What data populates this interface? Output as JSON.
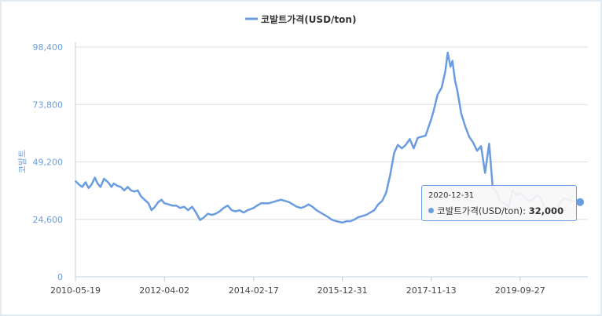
{
  "chart_data": {
    "type": "line",
    "legend": "코발트가격(USD/ton)",
    "legend_position": "top-center",
    "ylabel": "코발트",
    "y_ticks": [
      "0",
      "24,600",
      "49,200",
      "73,800",
      "98,400"
    ],
    "ylim": [
      0,
      98400
    ],
    "x_ticks": [
      "2010-05-19",
      "2012-04-02",
      "2014-02-17",
      "2015-12-31",
      "2017-11-13",
      "2019-09-27"
    ],
    "grid": "horizontal",
    "color": "#6a9ce0",
    "series": [
      {
        "name": "코발트가격(USD/ton)",
        "points": [
          [
            "2010-05-19",
            41000
          ],
          [
            "2010-06-15",
            39500
          ],
          [
            "2010-07-10",
            38500
          ],
          [
            "2010-08-05",
            40500
          ],
          [
            "2010-08-28",
            38000
          ],
          [
            "2010-09-20",
            39500
          ],
          [
            "2010-10-15",
            42500
          ],
          [
            "2010-11-05",
            40000
          ],
          [
            "2010-11-28",
            38500
          ],
          [
            "2010-12-25",
            42000
          ],
          [
            "2011-01-25",
            40500
          ],
          [
            "2011-02-20",
            38500
          ],
          [
            "2011-03-10",
            40000
          ],
          [
            "2011-04-05",
            39000
          ],
          [
            "2011-05-02",
            38500
          ],
          [
            "2011-05-30",
            37000
          ],
          [
            "2011-06-25",
            38500
          ],
          [
            "2011-07-20",
            37000
          ],
          [
            "2011-08-15",
            36500
          ],
          [
            "2011-09-10",
            37000
          ],
          [
            "2011-10-05",
            34500
          ],
          [
            "2011-11-01",
            33000
          ],
          [
            "2011-12-01",
            31500
          ],
          [
            "2011-12-25",
            28500
          ],
          [
            "2012-01-20",
            30000
          ],
          [
            "2012-02-15",
            32000
          ],
          [
            "2012-03-10",
            33000
          ],
          [
            "2012-04-02",
            31500
          ],
          [
            "2012-05-05",
            31000
          ],
          [
            "2012-06-01",
            30500
          ],
          [
            "2012-07-01",
            30500
          ],
          [
            "2012-08-01",
            29500
          ],
          [
            "2012-09-01",
            30000
          ],
          [
            "2012-10-01",
            28500
          ],
          [
            "2012-11-01",
            30000
          ],
          [
            "2012-12-01",
            27500
          ],
          [
            "2013-01-01",
            24300
          ],
          [
            "2013-02-01",
            25500
          ],
          [
            "2013-03-01",
            27000
          ],
          [
            "2013-04-01",
            26500
          ],
          [
            "2013-05-01",
            27000
          ],
          [
            "2013-06-01",
            28000
          ],
          [
            "2013-07-01",
            29500
          ],
          [
            "2013-08-01",
            30500
          ],
          [
            "2013-09-01",
            28500
          ],
          [
            "2013-10-01",
            28000
          ],
          [
            "2013-11-01",
            28500
          ],
          [
            "2013-12-01",
            27500
          ],
          [
            "2014-01-01",
            28500
          ],
          [
            "2014-02-17",
            29500
          ],
          [
            "2014-03-15",
            30500
          ],
          [
            "2014-04-15",
            31500
          ],
          [
            "2014-05-15",
            31500
          ],
          [
            "2014-06-15",
            31500
          ],
          [
            "2014-07-15",
            32000
          ],
          [
            "2014-08-15",
            32500
          ],
          [
            "2014-09-15",
            33000
          ],
          [
            "2014-10-15",
            32500
          ],
          [
            "2014-11-15",
            32000
          ],
          [
            "2014-12-15",
            31000
          ],
          [
            "2015-01-15",
            30000
          ],
          [
            "2015-02-15",
            29500
          ],
          [
            "2015-03-15",
            30000
          ],
          [
            "2015-04-15",
            31000
          ],
          [
            "2015-05-15",
            30000
          ],
          [
            "2015-06-15",
            28500
          ],
          [
            "2015-07-15",
            27500
          ],
          [
            "2015-08-15",
            26500
          ],
          [
            "2015-09-15",
            25500
          ],
          [
            "2015-10-15",
            24300
          ],
          [
            "2015-11-15",
            23800
          ],
          [
            "2015-12-31",
            23200
          ],
          [
            "2016-02-01",
            23800
          ],
          [
            "2016-03-01",
            23800
          ],
          [
            "2016-04-01",
            24500
          ],
          [
            "2016-05-01",
            25500
          ],
          [
            "2016-06-01",
            26000
          ],
          [
            "2016-07-01",
            26500
          ],
          [
            "2016-08-01",
            27500
          ],
          [
            "2016-09-01",
            28500
          ],
          [
            "2016-10-01",
            31000
          ],
          [
            "2016-11-01",
            32500
          ],
          [
            "2016-12-01",
            36000
          ],
          [
            "2017-01-01",
            43500
          ],
          [
            "2017-02-01",
            53000
          ],
          [
            "2017-03-01",
            56500
          ],
          [
            "2017-04-01",
            55000
          ],
          [
            "2017-05-01",
            56500
          ],
          [
            "2017-06-01",
            59000
          ],
          [
            "2017-07-01",
            55000
          ],
          [
            "2017-08-01",
            59500
          ],
          [
            "2017-09-01",
            60000
          ],
          [
            "2017-10-01",
            60500
          ],
          [
            "2017-11-13",
            67500
          ],
          [
            "2017-12-01",
            71000
          ],
          [
            "2018-01-01",
            78000
          ],
          [
            "2018-02-01",
            81000
          ],
          [
            "2018-03-01",
            88000
          ],
          [
            "2018-03-20",
            96000
          ],
          [
            "2018-04-10",
            90000
          ],
          [
            "2018-04-25",
            92500
          ],
          [
            "2018-05-15",
            84000
          ],
          [
            "2018-06-01",
            80000
          ],
          [
            "2018-07-01",
            70000
          ],
          [
            "2018-08-01",
            64500
          ],
          [
            "2018-09-01",
            60000
          ],
          [
            "2018-10-01",
            57500
          ],
          [
            "2018-11-01",
            54000
          ],
          [
            "2018-12-01",
            56000
          ],
          [
            "2019-01-01",
            44500
          ],
          [
            "2019-02-01",
            57000
          ],
          [
            "2019-03-01",
            38000
          ],
          [
            "2019-04-01",
            36000
          ],
          [
            "2019-05-01",
            32000
          ],
          [
            "2019-06-01",
            31500
          ],
          [
            "2019-07-01",
            30000
          ],
          [
            "2019-08-01",
            37000
          ],
          [
            "2019-09-01",
            35000
          ],
          [
            "2019-09-27",
            36000
          ],
          [
            "2019-11-01",
            34000
          ],
          [
            "2019-12-01",
            32500
          ],
          [
            "2020-01-01",
            33000
          ],
          [
            "2020-02-01",
            35000
          ],
          [
            "2020-03-01",
            34000
          ],
          [
            "2020-04-01",
            30000
          ],
          [
            "2020-05-01",
            29500
          ],
          [
            "2020-06-01",
            28500
          ],
          [
            "2020-07-01",
            28000
          ],
          [
            "2020-08-01",
            32000
          ],
          [
            "2020-09-01",
            33500
          ],
          [
            "2020-10-01",
            33000
          ],
          [
            "2020-11-01",
            32500
          ],
          [
            "2020-12-31",
            32000
          ]
        ]
      }
    ]
  },
  "tooltip": {
    "date": "2020-12-31",
    "series_label": "코발트가격(USD/ton):",
    "value": "32,000"
  }
}
